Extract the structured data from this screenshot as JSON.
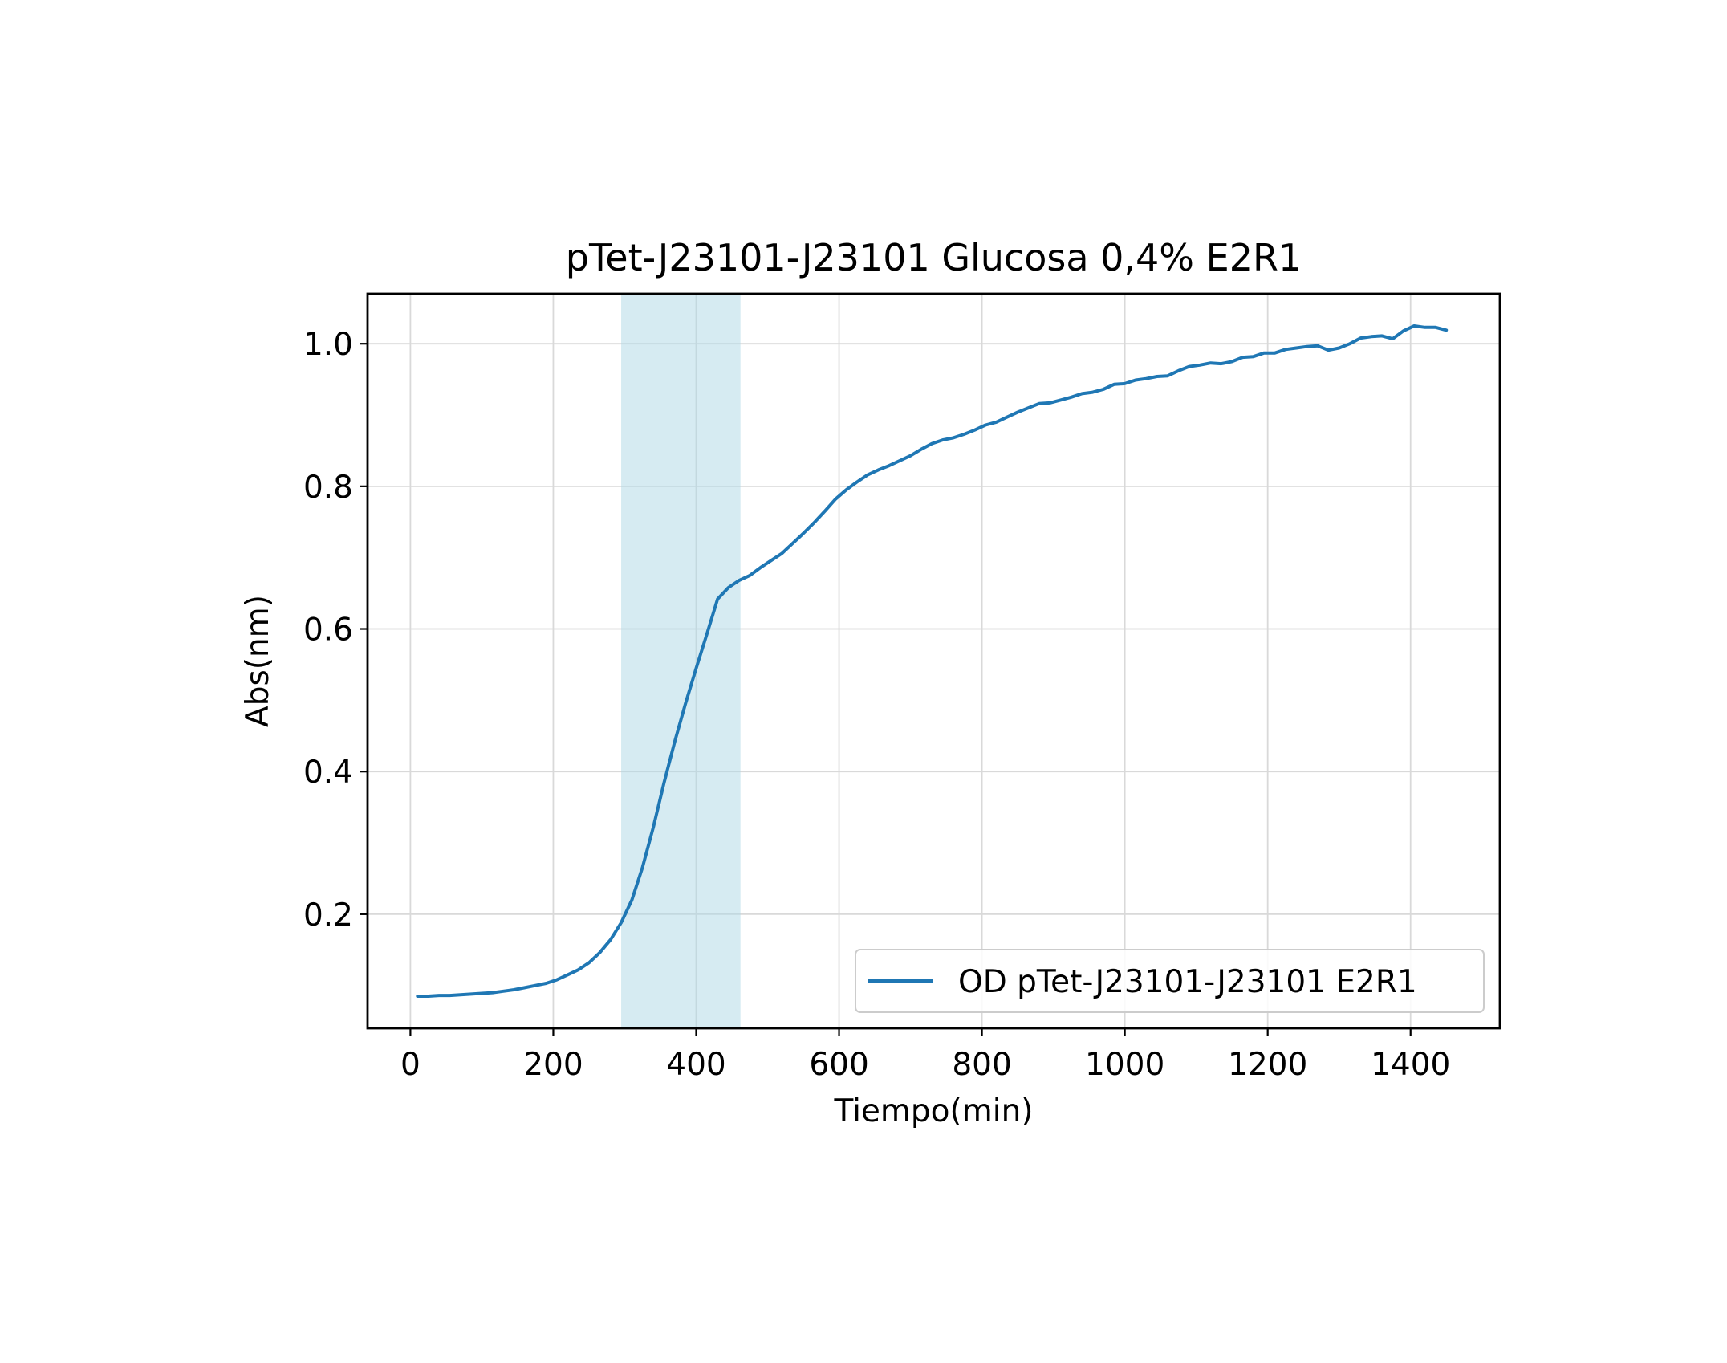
{
  "chart_data": {
    "type": "line",
    "title": "pTet-J23101-J23101 Glucosa 0,4% E2R1",
    "xlabel": "Tiempo(min)",
    "ylabel": "Abs(nm)",
    "xlim": [
      -60,
      1525
    ],
    "ylim": [
      0.04,
      1.07
    ],
    "x_ticks": [
      0,
      200,
      400,
      600,
      800,
      1000,
      1200,
      1400
    ],
    "x_tick_labels": [
      "0",
      "200",
      "400",
      "600",
      "800",
      "1000",
      "1200",
      "1400"
    ],
    "y_ticks": [
      0.2,
      0.4,
      0.6,
      0.8,
      1.0
    ],
    "y_tick_labels": [
      "0.2",
      "0.4",
      "0.6",
      "0.8",
      "1.0"
    ],
    "grid": true,
    "legend_position": "lower-right",
    "shaded_region": {
      "x_start": 295,
      "x_end": 462,
      "color": "#add8e6"
    },
    "series": [
      {
        "name": "OD pTet-J23101-J23101 E2R1",
        "color": "#1f77b4",
        "x": [
          10,
          25,
          40,
          55,
          70,
          85,
          100,
          115,
          130,
          145,
          160,
          175,
          190,
          205,
          220,
          235,
          250,
          265,
          280,
          295,
          310,
          325,
          340,
          355,
          370,
          385,
          400,
          415,
          430,
          445,
          460,
          475,
          490,
          505,
          520,
          535,
          550,
          565,
          580,
          595,
          610,
          625,
          640,
          655,
          670,
          685,
          700,
          715,
          730,
          745,
          760,
          775,
          790,
          805,
          820,
          835,
          850,
          865,
          880,
          895,
          910,
          925,
          940,
          955,
          970,
          985,
          1000,
          1015,
          1030,
          1045,
          1060,
          1075,
          1090,
          1105,
          1120,
          1135,
          1150,
          1165,
          1180,
          1195,
          1210,
          1225,
          1240,
          1255,
          1270,
          1285,
          1300,
          1315,
          1330,
          1345,
          1360,
          1375,
          1390,
          1405,
          1420,
          1435,
          1450
        ],
        "values": [
          0.085,
          0.085,
          0.086,
          0.086,
          0.087,
          0.088,
          0.089,
          0.09,
          0.092,
          0.094,
          0.097,
          0.1,
          0.103,
          0.108,
          0.115,
          0.122,
          0.132,
          0.146,
          0.164,
          0.188,
          0.22,
          0.266,
          0.322,
          0.384,
          0.442,
          0.495,
          0.545,
          0.593,
          0.642,
          0.658,
          0.668,
          0.675,
          0.686,
          0.696,
          0.706,
          0.72,
          0.734,
          0.749,
          0.765,
          0.782,
          0.795,
          0.806,
          0.816,
          0.823,
          0.829,
          0.836,
          0.843,
          0.852,
          0.86,
          0.865,
          0.868,
          0.873,
          0.879,
          0.886,
          0.89,
          0.897,
          0.904,
          0.91,
          0.916,
          0.917,
          0.921,
          0.925,
          0.93,
          0.932,
          0.936,
          0.943,
          0.944,
          0.949,
          0.951,
          0.954,
          0.955,
          0.962,
          0.968,
          0.97,
          0.973,
          0.972,
          0.975,
          0.981,
          0.982,
          0.987,
          0.987,
          0.992,
          0.994,
          0.996,
          0.997,
          0.991,
          0.994,
          1.0,
          1.008,
          1.01,
          1.011,
          1.007,
          1.018,
          1.025,
          1.023,
          1.023,
          1.019
        ]
      }
    ]
  }
}
